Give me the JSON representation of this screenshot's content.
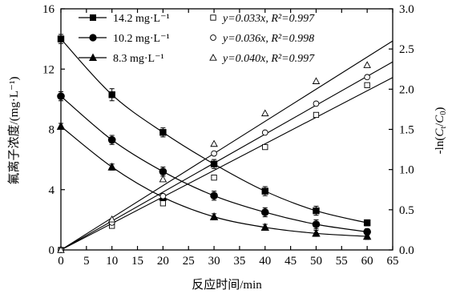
{
  "chart_data": {
    "type": "line",
    "title": "",
    "xlabel": "反应时间/min",
    "ylabel_left": "氟离子浓度/(mg·L⁻¹)",
    "ylabel_right": "-ln(Ct/C0)",
    "xlim": [
      0,
      65
    ],
    "ylim_left": [
      0,
      16
    ],
    "ylim_right": [
      0,
      3.0
    ],
    "x_ticks": [
      0,
      5,
      10,
      15,
      20,
      25,
      30,
      35,
      40,
      45,
      50,
      55,
      60,
      65
    ],
    "y_left_ticks": [
      0,
      4,
      8,
      12,
      16
    ],
    "y_right_ticks": [
      0,
      0.5,
      1.0,
      1.5,
      2.0,
      2.5,
      3.0
    ],
    "grid": false,
    "legend_position": "top-left",
    "series": [
      {
        "name": "14.2 mg·L⁻¹",
        "axis": "left",
        "marker": "square",
        "x": [
          0,
          10,
          20,
          30,
          40,
          50,
          60
        ],
        "y": [
          14.0,
          10.3,
          7.8,
          5.7,
          3.9,
          2.6,
          1.8
        ],
        "err": [
          0.3,
          0.4,
          0.3,
          0.3,
          0.3,
          0.3,
          0.2
        ]
      },
      {
        "name": "10.2 mg·L⁻¹",
        "axis": "left",
        "marker": "circle",
        "x": [
          0,
          10,
          20,
          30,
          40,
          50,
          60
        ],
        "y": [
          10.2,
          7.3,
          5.2,
          3.6,
          2.5,
          1.7,
          1.2
        ],
        "err": [
          0.3,
          0.3,
          0.3,
          0.3,
          0.3,
          0.3,
          0.2
        ]
      },
      {
        "name": "8.3 mg·L⁻¹",
        "axis": "left",
        "marker": "triangle",
        "x": [
          0,
          10,
          20,
          30,
          40,
          50,
          60
        ],
        "y": [
          8.2,
          5.5,
          3.5,
          2.2,
          1.5,
          1.1,
          0.9
        ],
        "err": [
          0.2,
          0.2,
          0.2,
          0.2,
          0.2,
          0.2,
          0.2
        ]
      }
    ],
    "fit_series": [
      {
        "label": "y=0.033x, R²=0.997",
        "slope": 0.033,
        "marker": "open-square",
        "x": [
          0,
          10,
          20,
          30,
          40,
          50,
          60
        ],
        "y": [
          0,
          0.3,
          0.58,
          0.9,
          1.28,
          1.68,
          2.05
        ]
      },
      {
        "label": "y=0.036x, R²=0.998",
        "slope": 0.036,
        "marker": "open-circle",
        "x": [
          0,
          10,
          20,
          30,
          40,
          50,
          60
        ],
        "y": [
          0,
          0.34,
          0.67,
          1.2,
          1.46,
          1.82,
          2.15
        ]
      },
      {
        "label": "y=0.040x, R²=0.997",
        "slope": 0.04,
        "marker": "open-triangle",
        "x": [
          0,
          10,
          20,
          30,
          40,
          50,
          60
        ],
        "y": [
          0,
          0.38,
          0.88,
          1.32,
          1.7,
          2.1,
          2.3
        ]
      }
    ],
    "fit_line_end_x": 65
  }
}
